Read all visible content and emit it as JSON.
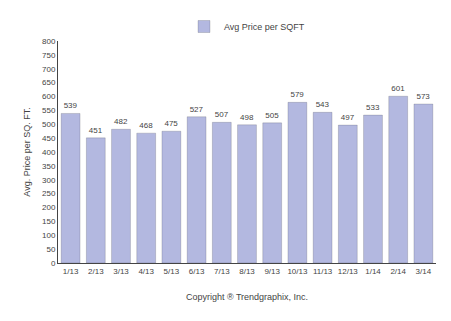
{
  "chart_data": {
    "type": "bar",
    "categories": [
      "1/13",
      "2/13",
      "3/13",
      "4/13",
      "5/13",
      "6/13",
      "7/13",
      "8/13",
      "9/13",
      "10/13",
      "11/13",
      "12/13",
      "1/14",
      "2/14",
      "3/14"
    ],
    "series": [
      {
        "name": "Avg Price per SQFT",
        "color": "#b3b8e0",
        "values": [
          539,
          451,
          482,
          468,
          475,
          527,
          507,
          498,
          505,
          579,
          543,
          497,
          533,
          601,
          573
        ]
      }
    ],
    "ylabel": "Avg. Price per SQ. FT.",
    "xlabel": "Copyright ® Trendgraphix, Inc.",
    "ylim": [
      0,
      800
    ],
    "yticks": [
      0,
      50,
      100,
      150,
      200,
      250,
      300,
      350,
      400,
      450,
      500,
      550,
      600,
      650,
      700,
      750,
      800
    ],
    "grid": false,
    "legend": "top",
    "data_labels": true
  }
}
